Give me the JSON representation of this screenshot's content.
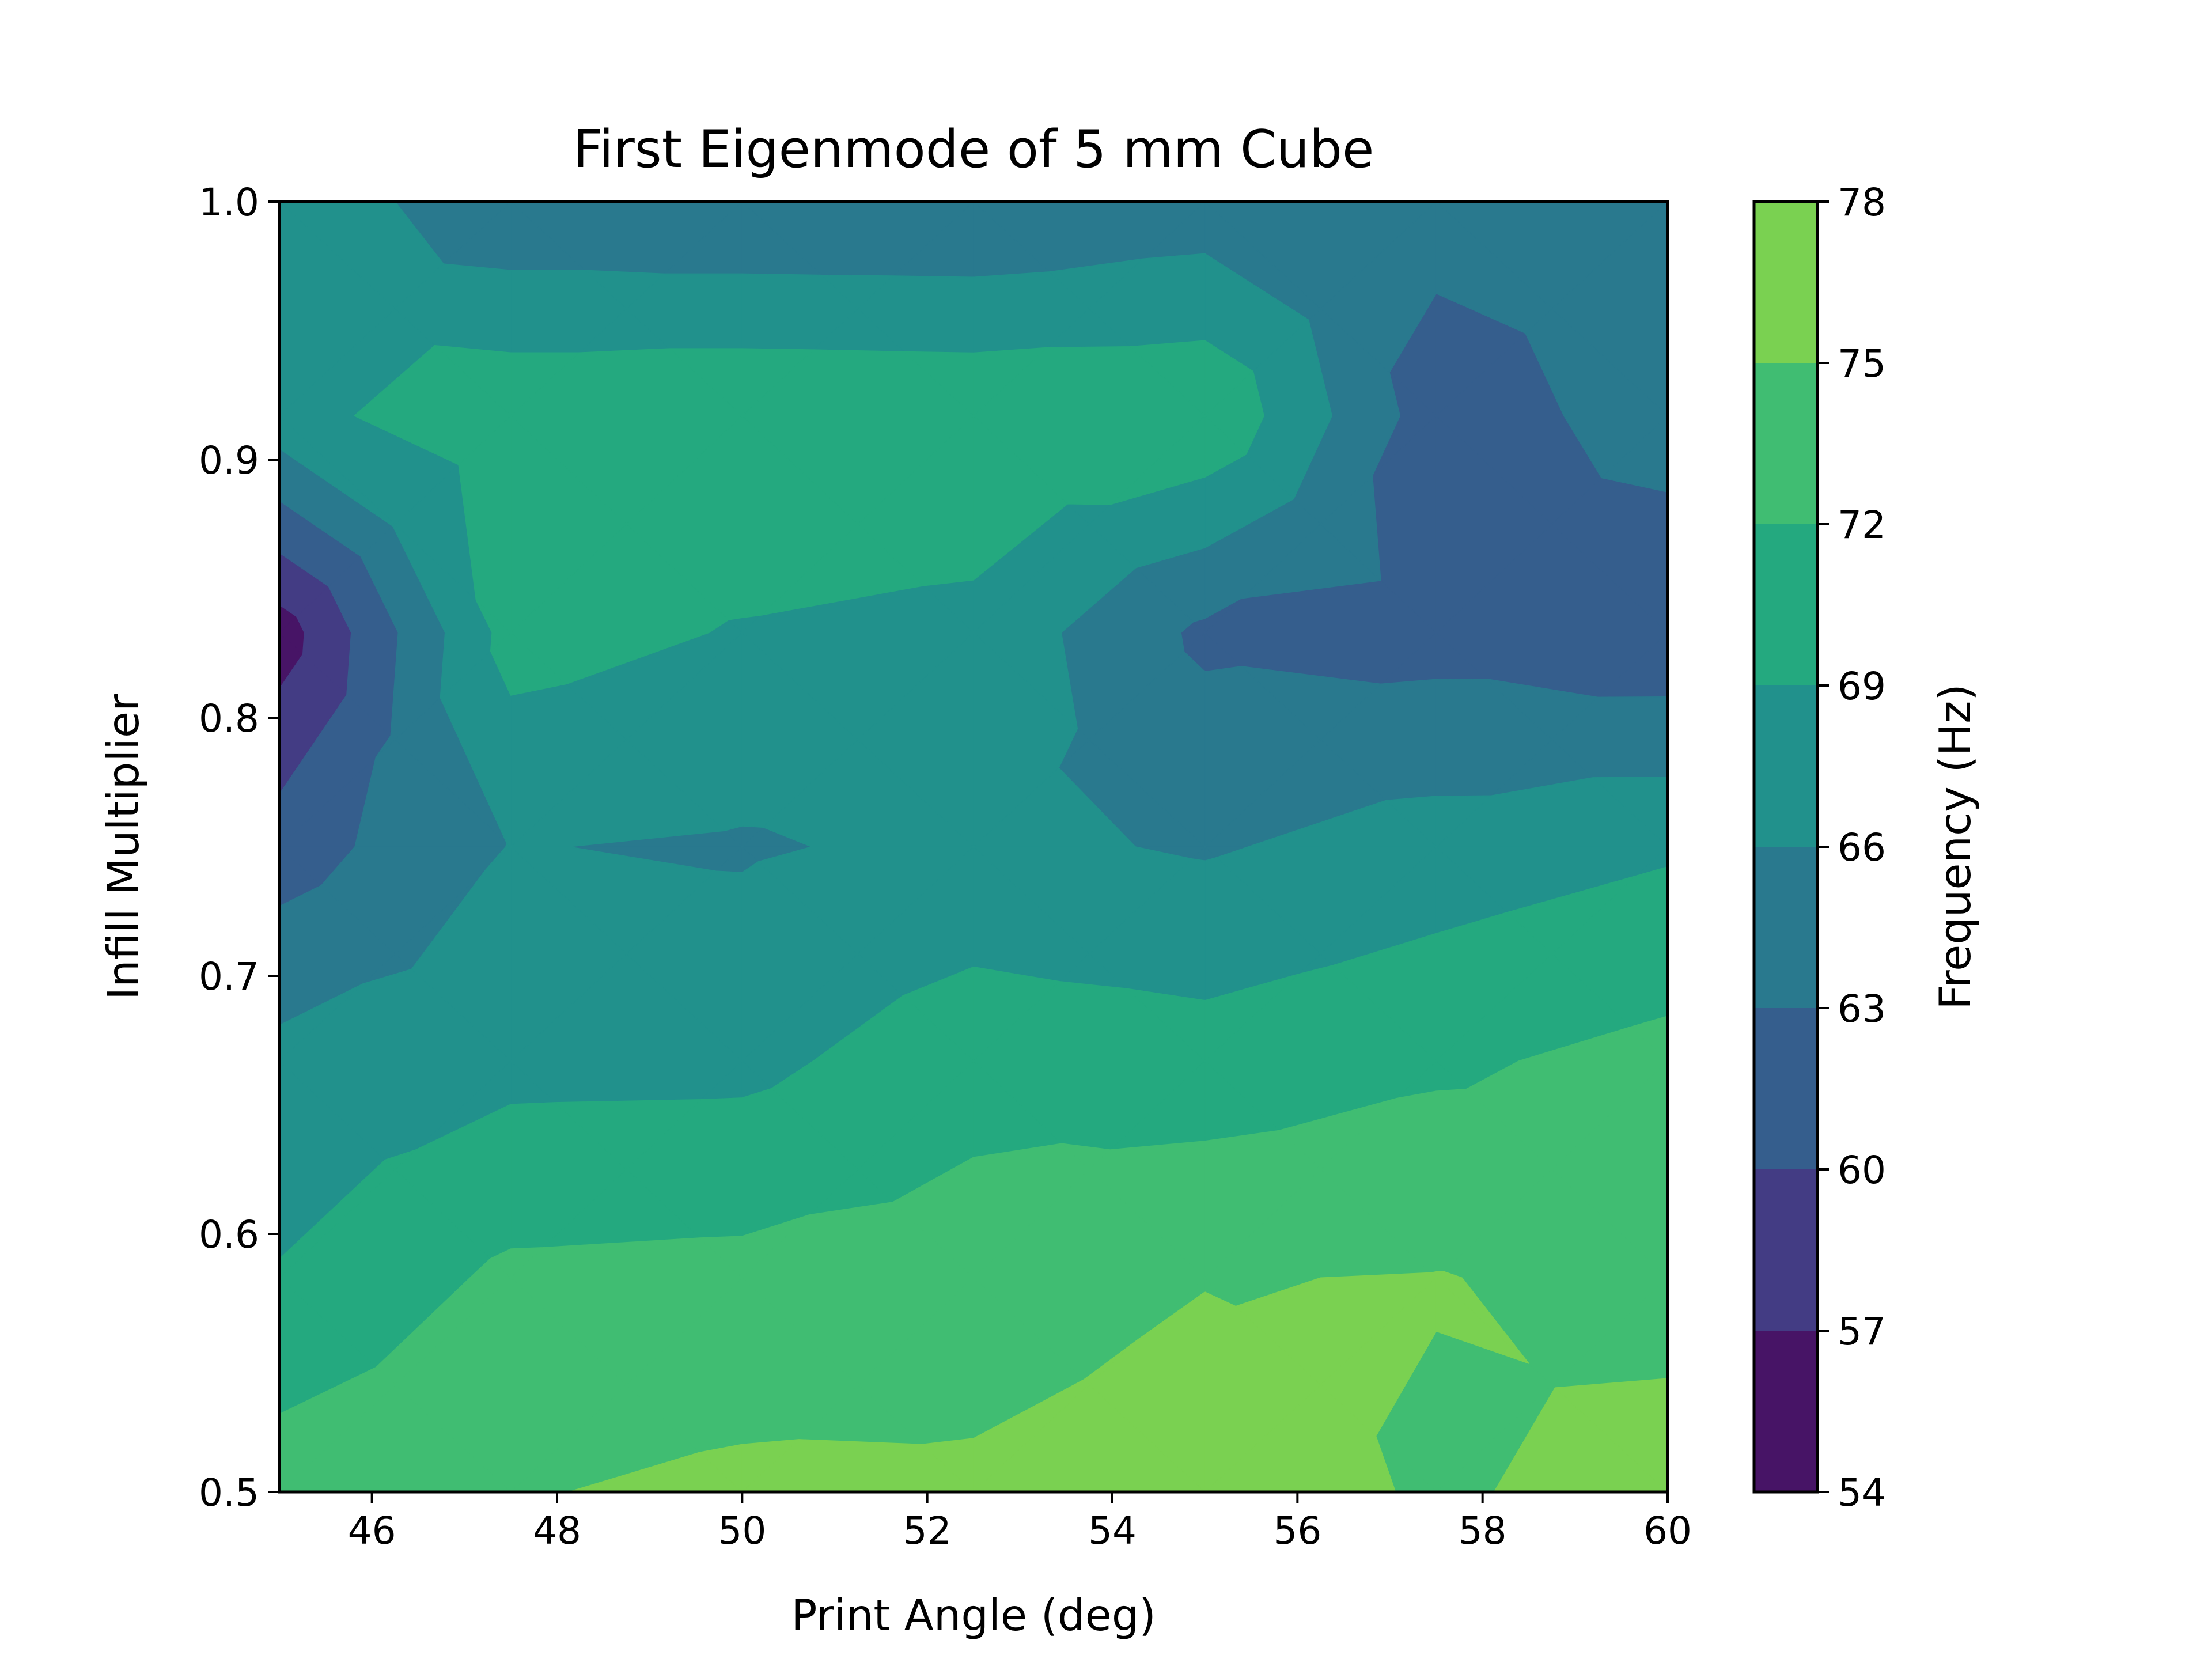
{
  "chart_data": {
    "type": "contour",
    "title": "First Eigenmode of 5 mm Cube",
    "xlabel": "Print Angle (deg)",
    "ylabel": "Infill Multiplier",
    "colorbar_label": "Frequency (Hz)",
    "xlim": [
      45,
      60
    ],
    "ylim": [
      0.5,
      1.0
    ],
    "x_ticks": [
      46,
      48,
      50,
      52,
      54,
      56,
      58,
      60
    ],
    "y_ticks": [
      0.5,
      0.6,
      0.7,
      0.8,
      0.9,
      1.0
    ],
    "colorbar_ticks": [
      54,
      57,
      60,
      63,
      66,
      69,
      72,
      75,
      78
    ],
    "levels": [
      54,
      57,
      60,
      63,
      66,
      69,
      72,
      75,
      78
    ],
    "colormap": "viridis",
    "level_colors": [
      "#471466",
      "#433c84",
      "#355e8d",
      "#29798e",
      "#21918c",
      "#24a97f",
      "#40bd72",
      "#7ad151",
      "#d3e226"
    ],
    "x": [
      45,
      47.5,
      50,
      52.5,
      55,
      57.5,
      60
    ],
    "y": [
      0.5,
      0.583,
      0.667,
      0.75,
      0.833,
      0.917,
      1.0
    ],
    "z": [
      [
        73.6,
        74.8,
        75.6,
        75.5,
        76.4,
        74.7,
        75.9
      ],
      [
        69.2,
        72.6,
        72.9,
        73.5,
        74.9,
        75.1,
        74.2
      ],
      [
        66.9,
        68.1,
        68.2,
        70.8,
        70.3,
        71.5,
        72.9
      ],
      [
        61.5,
        66.1,
        65.7,
        66.7,
        65.7,
        67.3,
        68.6
      ],
      [
        55.4,
        70.2,
        68.8,
        68.2,
        62.4,
        61.8,
        60.6
      ],
      [
        67.9,
        71.3,
        71.7,
        71.5,
        71.6,
        61.4,
        64.3
      ],
      [
        68.5,
        63.5,
        63.1,
        63.0,
        64.2,
        64.2,
        64.0
      ]
    ]
  }
}
